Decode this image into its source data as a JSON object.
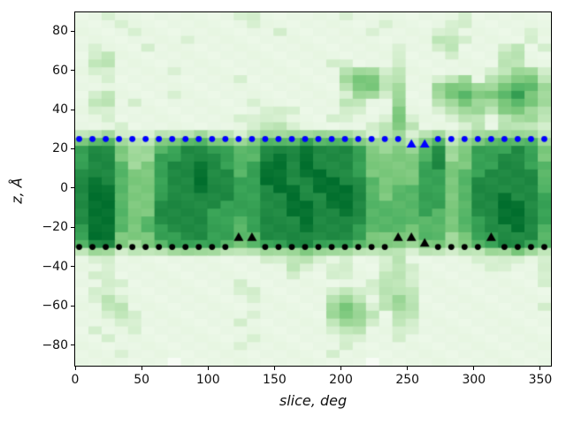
{
  "chart_data": {
    "type": "heatmap",
    "title": "",
    "xlabel": "slice, deg",
    "ylabel": "z, Å",
    "x_range": [
      0,
      358
    ],
    "z_range": [
      -90.5,
      89.5
    ],
    "x_ticks": [
      0,
      50,
      100,
      150,
      200,
      250,
      300,
      350
    ],
    "y_ticks": [
      -80,
      -60,
      -40,
      -20,
      0,
      20,
      40,
      60,
      80
    ],
    "grid_on": false,
    "legend": "none",
    "colormap": {
      "name": "Greens",
      "stops": [
        [
          0.0,
          247,
          252,
          245
        ],
        [
          0.125,
          229,
          245,
          224
        ],
        [
          0.25,
          199,
          233,
          192
        ],
        [
          0.375,
          161,
          217,
          155
        ],
        [
          0.5,
          116,
          196,
          118
        ],
        [
          0.625,
          65,
          171,
          93
        ],
        [
          0.75,
          35,
          139,
          69
        ],
        [
          0.875,
          0,
          109,
          44
        ],
        [
          1.0,
          0,
          68,
          27
        ]
      ]
    },
    "grid": {
      "cols": 36,
      "rows": 45,
      "x_step_deg": 10,
      "z_step_angstrom": 4,
      "intensity_scale": "digits 0 (lightest) to 9 (darkest)",
      "rows_top_to_bottom": [
        "112111111111221111112111111112111111",
        "111211111111121111111112111122111111",
        "111121111111111211111121111221111121",
        "111111112111111111111111111332111121",
        "121112111111111111111111211231112312",
        "123111111111111111111111211121113311",
        "133111111111111111122111211111113311",
        "122111121111111111113442311111123442",
        "112111111111211111114553311234134553",
        "111111111111111111113553411455445664",
        "123111121111111111112442411456556754",
        "133121111111121111113311411345445654",
        "122111111111112221112211511234435543",
        "112111111111222211122112521123313443",
        "111211111111123321111123531112313332",
        "334222333433234444444323423423444443",
        "566433556655456667666544435634566664",
        "788544678877668889888754546845777875",
        "788544778887668989888755556845778875",
        "788645788987679989888755557855778876",
        "888655788988679989988755557756788886",
        "898655788988779988998865557756888886",
        "899655788988778998999865667756888886",
        "899655788888778898899865667756889887",
        "899655888887778899899866667756889987",
        "899655888877778899889866667656889987",
        "899656888877678889888866666656789987",
        "799656788877678889888766656656788986",
        "799555778877668888888755556645778886",
        "688545677776567788777655545545678876",
        "344233344443334445444333323323344543",
        "122111111111112233212112311111222212",
        "112111111111111132122112321111122112",
        "122111111111111121122113321111111112",
        "112211111111211111111123321111111112",
        "122111111111221111123223331111111111",
        "123211111111121111134313431111111111",
        "113311111111111111145423431111111112",
        "112321111111121111145431331111111111",
        "111221111111211111134421321111111111",
        "121121111111111111123311221111111111",
        "112111111111121111112211211111111111",
        "111111111111211111112111111111111111",
        "111211111111111111121111111111111111",
        "111111101111111111111101111111111111"
      ]
    },
    "overlays": {
      "blue_dots": {
        "color": "#0000ff",
        "z": 25,
        "x": [
          3,
          13,
          23,
          33,
          43,
          53,
          63,
          73,
          83,
          93,
          103,
          113,
          123,
          133,
          143,
          153,
          163,
          173,
          183,
          193,
          203,
          213,
          223,
          233,
          243,
          273,
          283,
          293,
          303,
          313,
          323,
          333,
          343,
          353
        ]
      },
      "blue_triangles": {
        "color": "#0000ff",
        "points": [
          {
            "x": 253,
            "z": 22.5
          },
          {
            "x": 263,
            "z": 22.5
          }
        ]
      },
      "black_dots": {
        "color": "#000000",
        "z": -30,
        "x": [
          3,
          13,
          23,
          33,
          43,
          53,
          63,
          73,
          83,
          93,
          103,
          113,
          143,
          153,
          163,
          173,
          183,
          193,
          203,
          213,
          223,
          233,
          273,
          283,
          293,
          303,
          323,
          333,
          343,
          353
        ]
      },
      "black_triangles": {
        "color": "#000000",
        "points": [
          {
            "x": 123,
            "z": -25
          },
          {
            "x": 133,
            "z": -25
          },
          {
            "x": 243,
            "z": -25
          },
          {
            "x": 253,
            "z": -25
          },
          {
            "x": 263,
            "z": -28
          },
          {
            "x": 313,
            "z": -25
          }
        ]
      }
    }
  }
}
